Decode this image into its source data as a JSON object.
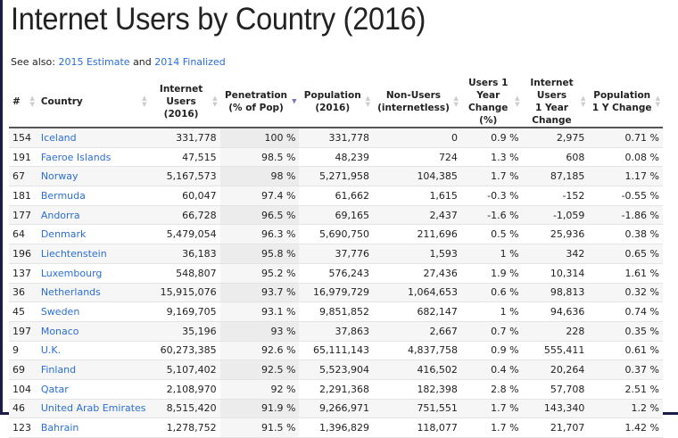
{
  "title": "Internet Users by Country (2016)",
  "see_also": {
    "prefix": "See also:",
    "link1": "2015 Estimate",
    "and": "and",
    "link2": "2014 Finalized"
  },
  "colors": {
    "link": "#2a6ed8",
    "sort_active": "#7a74c9"
  },
  "sort": {
    "column": "Penetration (% of Pop)",
    "direction": "descending"
  },
  "columns": [
    "#",
    "Country",
    "Internet Users (2016)",
    "Penetration (% of Pop)",
    "Population (2016)",
    "Non-Users (internetless)",
    "Users 1 Year Change (%)",
    "Internet Users 1 Year Change",
    "Population 1 Y Change"
  ],
  "rows": [
    [
      "154",
      "Iceland",
      "331,778",
      "100 %",
      "331,778",
      "0",
      "0.9 %",
      "2,975",
      "0.71 %"
    ],
    [
      "191",
      "Faeroe Islands",
      "47,515",
      "98.5 %",
      "48,239",
      "724",
      "1.3 %",
      "608",
      "0.08 %"
    ],
    [
      "67",
      "Norway",
      "5,167,573",
      "98 %",
      "5,271,958",
      "104,385",
      "1.7 %",
      "87,185",
      "1.17 %"
    ],
    [
      "181",
      "Bermuda",
      "60,047",
      "97.4 %",
      "61,662",
      "1,615",
      "-0.3 %",
      "-152",
      "-0.55 %"
    ],
    [
      "177",
      "Andorra",
      "66,728",
      "96.5 %",
      "69,165",
      "2,437",
      "-1.6 %",
      "-1,059",
      "-1.86 %"
    ],
    [
      "64",
      "Denmark",
      "5,479,054",
      "96.3 %",
      "5,690,750",
      "211,696",
      "0.5 %",
      "25,936",
      "0.38 %"
    ],
    [
      "196",
      "Liechtenstein",
      "36,183",
      "95.8 %",
      "37,776",
      "1,593",
      "1 %",
      "342",
      "0.65 %"
    ],
    [
      "137",
      "Luxembourg",
      "548,807",
      "95.2 %",
      "576,243",
      "27,436",
      "1.9 %",
      "10,314",
      "1.61 %"
    ],
    [
      "36",
      "Netherlands",
      "15,915,076",
      "93.7 %",
      "16,979,729",
      "1,064,653",
      "0.6 %",
      "98,813",
      "0.32 %"
    ],
    [
      "45",
      "Sweden",
      "9,169,705",
      "93.1 %",
      "9,851,852",
      "682,147",
      "1 %",
      "94,636",
      "0.74 %"
    ],
    [
      "197",
      "Monaco",
      "35,196",
      "93 %",
      "37,863",
      "2,667",
      "0.7 %",
      "228",
      "0.35 %"
    ],
    [
      "9",
      "U.K.",
      "60,273,385",
      "92.6 %",
      "65,111,143",
      "4,837,758",
      "0.9 %",
      "555,411",
      "0.61 %"
    ],
    [
      "69",
      "Finland",
      "5,107,402",
      "92.5 %",
      "5,523,904",
      "416,502",
      "0.4 %",
      "20,264",
      "0.37 %"
    ],
    [
      "104",
      "Qatar",
      "2,108,970",
      "92 %",
      "2,291,368",
      "182,398",
      "2.8 %",
      "57,708",
      "2.51 %"
    ],
    [
      "46",
      "United Arab Emirates",
      "8,515,420",
      "91.9 %",
      "9,266,971",
      "751,551",
      "1.7 %",
      "143,340",
      "1.2 %"
    ],
    [
      "123",
      "Bahrain",
      "1,278,752",
      "91.5 %",
      "1,396,829",
      "118,077",
      "1.7 %",
      "21,707",
      "1.42 %"
    ]
  ]
}
